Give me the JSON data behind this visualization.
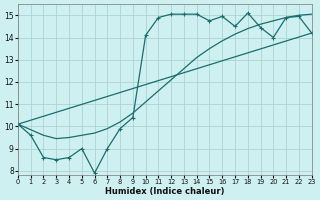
{
  "xlabel": "Humidex (Indice chaleur)",
  "xlim": [
    0,
    23
  ],
  "ylim": [
    7.8,
    15.5
  ],
  "yticks": [
    8,
    9,
    10,
    11,
    12,
    13,
    14,
    15
  ],
  "xticks": [
    0,
    1,
    2,
    3,
    4,
    5,
    6,
    7,
    8,
    9,
    10,
    11,
    12,
    13,
    14,
    15,
    16,
    17,
    18,
    19,
    20,
    21,
    22,
    23
  ],
  "bg_color": "#cff0f0",
  "grid_color": "#aad4d4",
  "line_color": "#1a6e6e",
  "line1_x": [
    0,
    1,
    2,
    3,
    4,
    5,
    6,
    7,
    8,
    9,
    10,
    11,
    12,
    13,
    14,
    15,
    16,
    17,
    18,
    19,
    20,
    21,
    22,
    23
  ],
  "line1_y": [
    10.1,
    9.6,
    8.6,
    8.5,
    8.6,
    9.0,
    7.9,
    9.0,
    9.9,
    10.4,
    14.1,
    14.9,
    15.05,
    15.05,
    15.05,
    14.75,
    14.95,
    14.5,
    15.1,
    14.45,
    14.0,
    14.9,
    14.95,
    14.2
  ],
  "line2_x": [
    0,
    23
  ],
  "line2_y": [
    10.1,
    14.2
  ],
  "line3_x": [
    0,
    1,
    2,
    3,
    4,
    5,
    6,
    7,
    8,
    9,
    10,
    11,
    12,
    13,
    14,
    15,
    16,
    17,
    18,
    19,
    20,
    21,
    22,
    23
  ],
  "line3_y": [
    10.1,
    9.85,
    9.6,
    9.45,
    9.5,
    9.6,
    9.7,
    9.9,
    10.2,
    10.6,
    11.1,
    11.6,
    12.1,
    12.6,
    13.1,
    13.5,
    13.85,
    14.15,
    14.4,
    14.6,
    14.75,
    14.9,
    15.0,
    15.05
  ]
}
